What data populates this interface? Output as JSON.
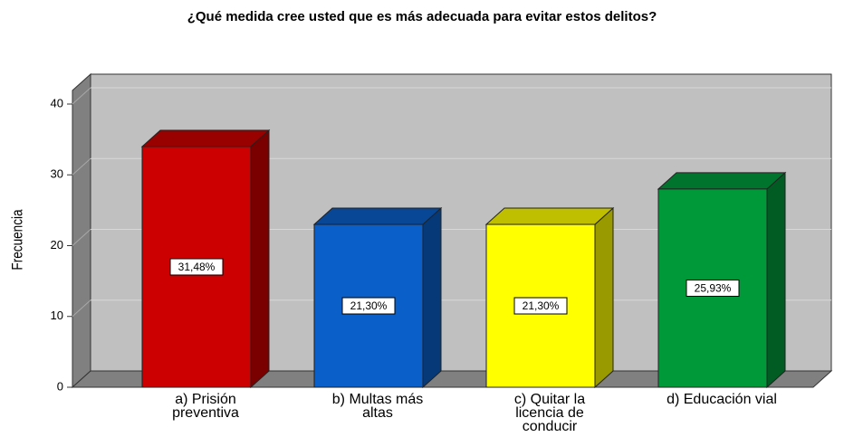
{
  "chart_data": {
    "type": "bar3d",
    "title": "¿Qué medida cree usted que es más adecuada para evitar estos delitos?",
    "ylabel": "Frecuencia",
    "categories": [
      [
        "a) Prisión",
        "preventiva"
      ],
      [
        "b) Multas más",
        "altas"
      ],
      [
        "c) Quitar la",
        "licencia de",
        "conducir"
      ],
      [
        "d) Educación vial"
      ]
    ],
    "values": [
      34,
      23,
      23,
      28
    ],
    "data_labels": [
      "31,48%",
      "21,30%",
      "21,30%",
      "25,93%"
    ],
    "colors": [
      "#cc0000",
      "#0a5fc8",
      "#ffff00",
      "#00993a"
    ],
    "ylim": [
      0,
      40
    ],
    "yticks": [
      0,
      10,
      20,
      30,
      40
    ],
    "grid": true
  }
}
